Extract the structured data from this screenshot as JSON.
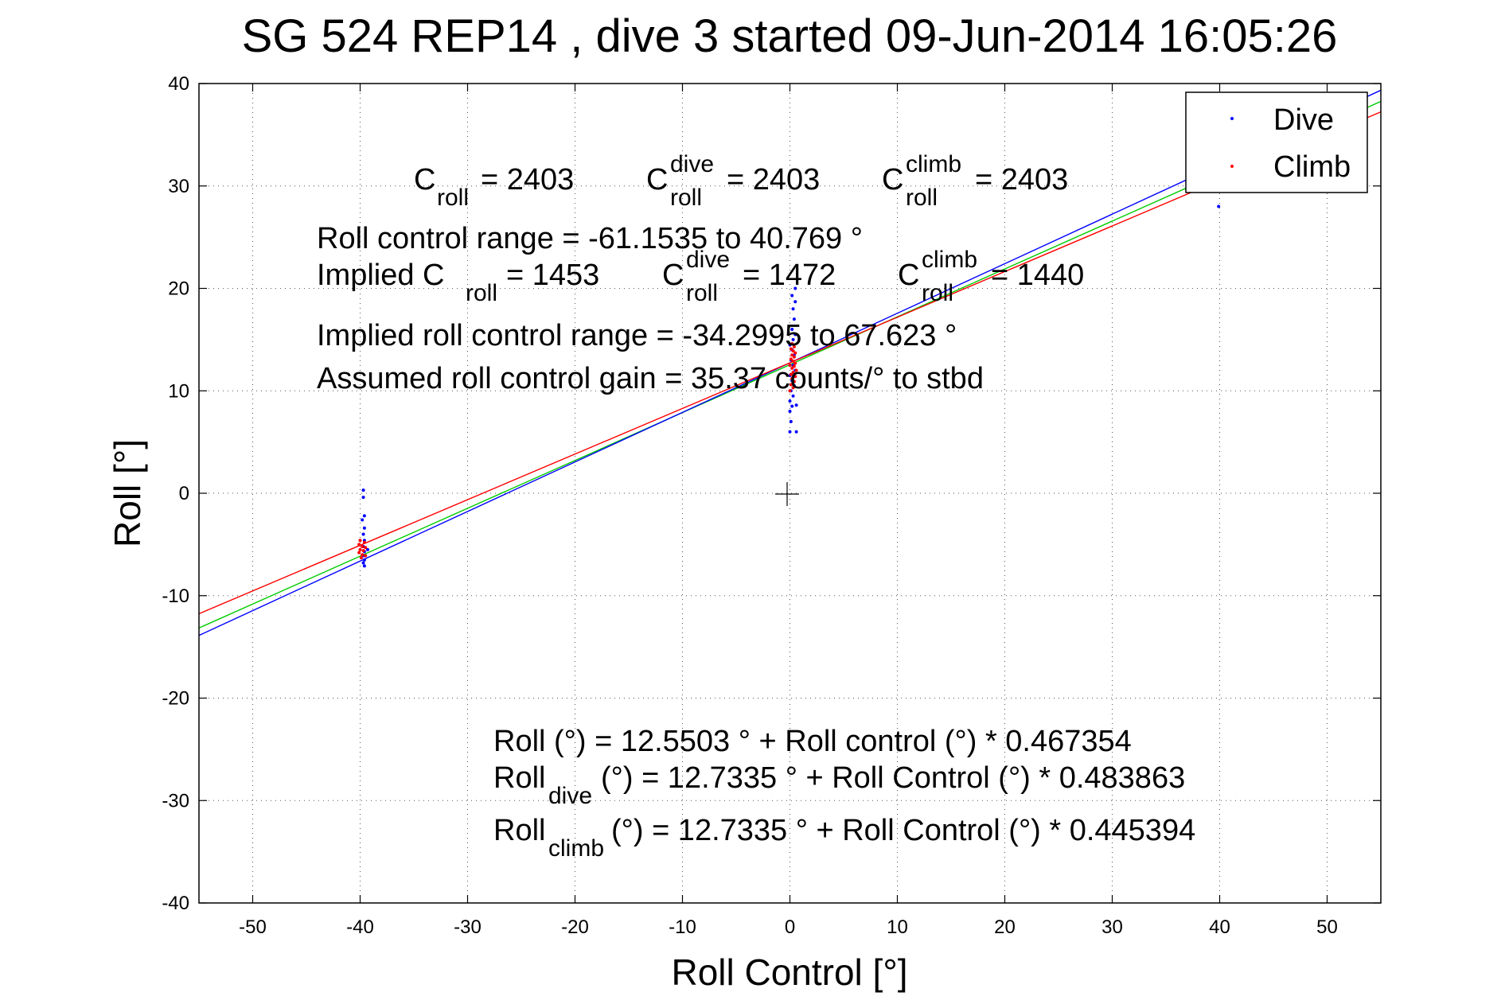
{
  "chart_data": {
    "type": "scatter",
    "title": "SG 524   REP14  , dive 3 started 09-Jun-2014 16:05:26",
    "xlabel": "Roll Control [°]",
    "ylabel": "Roll [°]",
    "xlim": [
      -55,
      55
    ],
    "ylim": [
      -40,
      40
    ],
    "xticks": [
      -50,
      -40,
      -30,
      -20,
      -10,
      0,
      10,
      20,
      30,
      40,
      50
    ],
    "yticks": [
      -40,
      -30,
      -20,
      -10,
      0,
      10,
      20,
      30,
      40
    ],
    "grid": true,
    "legend_position": "top-right",
    "colors": {
      "dive": "#0000ff",
      "climb": "#ff0000",
      "fit_all": "#00cc00"
    },
    "series": [
      {
        "name": "Dive",
        "color": "#0000ff",
        "points": [
          [
            -39.7,
            0.3
          ],
          [
            -39.7,
            -0.4
          ],
          [
            -39.6,
            -2.2
          ],
          [
            -39.8,
            -2.6
          ],
          [
            -39.6,
            -3.4
          ],
          [
            -39.7,
            -4.0
          ],
          [
            -39.6,
            -4.6
          ],
          [
            -39.7,
            -5.2
          ],
          [
            -39.6,
            -5.7
          ],
          [
            -39.7,
            -6.1
          ],
          [
            -39.6,
            -6.5
          ],
          [
            -39.7,
            -6.8
          ],
          [
            -39.6,
            -7.1
          ],
          [
            -39.3,
            -5.5
          ],
          [
            0.0,
            6.0
          ],
          [
            0.6,
            6.0
          ],
          [
            0.1,
            7.0
          ],
          [
            0.0,
            8.0
          ],
          [
            0.2,
            8.5
          ],
          [
            0.0,
            9.0
          ],
          [
            0.3,
            9.5
          ],
          [
            0.1,
            10.0
          ],
          [
            0.4,
            10.5
          ],
          [
            0.2,
            11.0
          ],
          [
            0.0,
            11.5
          ],
          [
            0.5,
            12.0
          ],
          [
            0.3,
            12.5
          ],
          [
            0.1,
            13.0
          ],
          [
            0.4,
            13.5
          ],
          [
            0.2,
            14.0
          ],
          [
            0.0,
            14.5
          ],
          [
            0.3,
            15.0
          ],
          [
            0.5,
            15.5
          ],
          [
            0.2,
            16.0
          ],
          [
            0.4,
            17.0
          ],
          [
            0.3,
            18.0
          ],
          [
            0.5,
            18.7
          ],
          [
            0.2,
            19.3
          ],
          [
            0.5,
            20.0
          ],
          [
            0.6,
            8.6
          ],
          [
            39.9,
            28.0
          ]
        ]
      },
      {
        "name": "Climb",
        "color": "#ff0000",
        "points": [
          [
            -40.0,
            -4.6
          ],
          [
            -39.6,
            -4.8
          ],
          [
            -40.1,
            -5.0
          ],
          [
            -39.8,
            -5.2
          ],
          [
            -39.5,
            -5.3
          ],
          [
            -40.0,
            -5.5
          ],
          [
            -39.7,
            -5.6
          ],
          [
            -40.1,
            -5.8
          ],
          [
            -39.8,
            -6.0
          ],
          [
            -39.5,
            -6.1
          ],
          [
            -39.9,
            -6.3
          ],
          [
            0.0,
            10.0
          ],
          [
            0.3,
            10.3
          ],
          [
            0.1,
            10.6
          ],
          [
            0.4,
            10.9
          ],
          [
            0.2,
            11.2
          ],
          [
            0.5,
            11.4
          ],
          [
            0.1,
            11.6
          ],
          [
            0.3,
            11.8
          ],
          [
            0.6,
            12.0
          ],
          [
            0.2,
            12.2
          ],
          [
            0.4,
            12.4
          ],
          [
            0.0,
            12.5
          ],
          [
            0.5,
            12.7
          ],
          [
            0.3,
            12.9
          ],
          [
            0.1,
            13.1
          ],
          [
            0.4,
            13.3
          ],
          [
            0.2,
            13.5
          ],
          [
            0.5,
            13.7
          ],
          [
            0.3,
            13.9
          ],
          [
            0.1,
            14.1
          ],
          [
            0.4,
            14.3
          ],
          [
            0.2,
            14.6
          ]
        ]
      }
    ],
    "fit_lines": [
      {
        "label": "all",
        "color": "#00cc00",
        "intercept": 12.5503,
        "slope": 0.467354
      },
      {
        "label": "dive",
        "color": "#0000ff",
        "intercept": 12.7335,
        "slope": 0.483863
      },
      {
        "label": "climb",
        "color": "#ff0000",
        "intercept": 12.7335,
        "slope": 0.445394
      }
    ],
    "annotations": {
      "c_roll_label": "C",
      "c_roll_sub": "roll",
      "c_roll_value": "= 2403",
      "c_dive_label": "C",
      "c_dive_sup": "dive",
      "c_dive_sub": "roll",
      "c_dive_value": "= 2403",
      "c_climb_label": "C",
      "c_climb_sup": "climb",
      "c_climb_sub": "roll",
      "c_climb_value": "= 2403",
      "range_line": "Roll control range = -61.1535 to 40.769 °",
      "implied_prefix": "Implied C",
      "implied_sub": "roll",
      "implied_value": "= 1453",
      "implied_dive_label": "C",
      "implied_dive_sup": "dive",
      "implied_dive_sub": "roll",
      "implied_dive_value": "= 1472",
      "implied_climb_label": "C",
      "implied_climb_sup": "climb",
      "implied_climb_sub": "roll",
      "implied_climb_value": "= 1440",
      "implied_range_line": "Implied roll control range = -34.2995 to 67.623 °",
      "gain_line": "Assumed roll control gain = 35.37 counts/° to stbd",
      "fit_all_line": "Roll (°) = 12.5503 ° + Roll control (°) * 0.467354",
      "fit_dive_prefix": "Roll",
      "fit_dive_sub": "dive",
      "fit_dive_rest": " (°) = 12.7335 ° + Roll Control (°) * 0.483863",
      "fit_climb_prefix": "Roll",
      "fit_climb_sub": "climb",
      "fit_climb_rest": " (°) = 12.7335 ° + Roll Control (°) * 0.445394"
    }
  }
}
